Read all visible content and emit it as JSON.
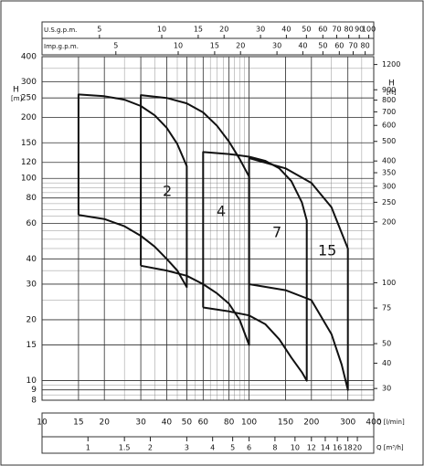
{
  "chart_data": {
    "type": "line",
    "x_label": "Q [l/min]",
    "y_label_top": "H",
    "y_label_unit": "[m]",
    "xlim": [
      10,
      400
    ],
    "ylim": [
      8,
      400
    ],
    "log_x": true,
    "log_y": true,
    "grid": true,
    "xticks": [
      10,
      15,
      20,
      30,
      40,
      50,
      60,
      80,
      100,
      150,
      200,
      300,
      400
    ],
    "yticks": [
      8,
      9,
      10,
      15,
      20,
      30,
      40,
      60,
      80,
      100,
      120,
      150,
      200,
      250,
      300,
      400
    ],
    "top_axis_1": {
      "label": "U.S.g.p.m.",
      "lim": [
        2.64,
        105.7
      ],
      "ticks": [
        5,
        10,
        15,
        20,
        30,
        40,
        50,
        60,
        70,
        80,
        90,
        100
      ]
    },
    "top_axis_2": {
      "label": "Imp.g.p.m.",
      "lim": [
        2.2,
        88.0
      ],
      "ticks": [
        5,
        10,
        15,
        20,
        30,
        40,
        50,
        60,
        70,
        80
      ]
    },
    "bottom_axis_2": {
      "label": "Q [m³/h]",
      "lim": [
        0.6,
        24
      ],
      "ticks": [
        1,
        1.5,
        2,
        3,
        4,
        5,
        6,
        8,
        10,
        12,
        14,
        16,
        18,
        20
      ]
    },
    "right_axis": {
      "label_top": "H",
      "label_unit": "[ft]",
      "lim": [
        26.25,
        1312.3
      ],
      "ticks": [
        30,
        40,
        50,
        75,
        100,
        200,
        250,
        300,
        350,
        400,
        500,
        600,
        700,
        800,
        900,
        1200
      ]
    },
    "series": [
      {
        "name": "2",
        "color": "#111111",
        "x": [
          15,
          15,
          20,
          25,
          30,
          35,
          40,
          45,
          50,
          50,
          45,
          40,
          35,
          30,
          25,
          20,
          15
        ],
        "values": [
          66,
          260,
          255,
          245,
          228,
          205,
          178,
          148,
          115,
          29,
          35,
          40,
          46,
          52,
          58,
          63,
          66
        ]
      },
      {
        "name": "4",
        "color": "#111111",
        "x": [
          30,
          30,
          40,
          50,
          60,
          70,
          80,
          90,
          100,
          100,
          90,
          80,
          70,
          60,
          50,
          40,
          30
        ],
        "values": [
          37,
          258,
          250,
          235,
          212,
          182,
          152,
          125,
          102,
          15,
          20,
          24,
          27,
          30,
          33,
          35,
          37
        ]
      },
      {
        "name": "7",
        "color": "#111111",
        "x": [
          60,
          60,
          80,
          100,
          120,
          140,
          160,
          180,
          190,
          190,
          180,
          160,
          140,
          120,
          100,
          80,
          60
        ],
        "values": [
          23,
          135,
          132,
          128,
          122,
          112,
          97,
          76,
          62,
          10,
          11,
          13,
          16,
          19,
          21,
          22,
          23
        ]
      },
      {
        "name": "15",
        "color": "#111111",
        "x": [
          100,
          100,
          150,
          200,
          250,
          300,
          300,
          280,
          250,
          200,
          150,
          100
        ],
        "values": [
          30,
          126,
          112,
          95,
          72,
          45,
          9,
          12,
          17,
          25,
          28,
          30
        ]
      }
    ]
  }
}
